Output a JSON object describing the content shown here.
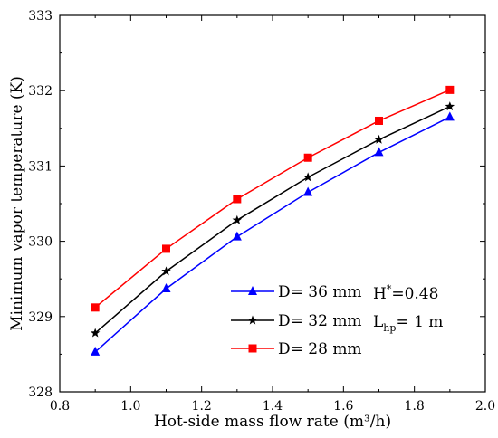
{
  "chart_data": {
    "type": "line",
    "xlabel": "Hot-side mass flow rate (m³/h)",
    "ylabel": "Minimum vapor temperature (K)",
    "xlim": [
      0.8,
      2.0
    ],
    "ylim": [
      328,
      333
    ],
    "xticks": [
      0.8,
      1.0,
      1.2,
      1.4,
      1.6,
      1.8,
      2.0
    ],
    "xtick_labels": [
      "0.8",
      "1.0",
      "1.2",
      "1.4",
      "1.6",
      "1.8",
      "2.0"
    ],
    "yticks": [
      328,
      329,
      330,
      331,
      332,
      333
    ],
    "ytick_labels": [
      "328",
      "329",
      "330",
      "331",
      "332",
      "333"
    ],
    "grid": false,
    "legend_position": "bottom-center",
    "x": [
      0.9,
      1.1,
      1.3,
      1.5,
      1.7,
      1.9
    ],
    "series": [
      {
        "name": "D= 36 mm",
        "values": [
          328.53,
          329.37,
          330.06,
          330.65,
          331.18,
          331.65
        ],
        "color": "#0000ff",
        "marker": "triangle"
      },
      {
        "name": "D= 32 mm",
        "values": [
          328.78,
          329.6,
          330.28,
          330.85,
          331.35,
          331.79
        ],
        "color": "#000000",
        "marker": "star"
      },
      {
        "name": "D= 28 mm",
        "values": [
          329.12,
          329.9,
          330.56,
          331.11,
          331.6,
          332.01
        ],
        "color": "#ff0000",
        "marker": "square"
      }
    ],
    "annotations": [
      {
        "main": "H",
        "sup": "*",
        "rest": "=0.48"
      },
      {
        "main": "L",
        "sub": "hp",
        "rest": "= 1 m"
      }
    ]
  }
}
